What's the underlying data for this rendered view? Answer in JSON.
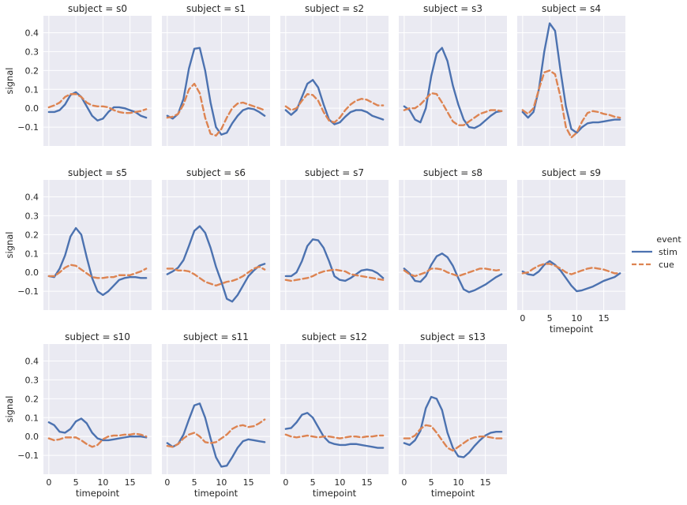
{
  "chart_data": {
    "type": "line",
    "title": "",
    "facet_var": "subject",
    "panel_titles": [
      "subject = s0",
      "subject = s1",
      "subject = s2",
      "subject = s3",
      "subject = s4",
      "subject = s5",
      "subject = s6",
      "subject = s7",
      "subject = s8",
      "subject = s9",
      "subject = s10",
      "subject = s11",
      "subject = s12",
      "subject = s13"
    ],
    "xlabel": "timepoint",
    "ylabel": "signal",
    "xlim": [
      -1,
      19
    ],
    "ylim": [
      -0.2,
      0.49
    ],
    "xticks": [
      "0",
      "5",
      "10",
      "15"
    ],
    "yticks": [
      "−0.1",
      "0.0",
      "0.1",
      "0.2",
      "0.3",
      "0.4"
    ],
    "grid": true,
    "legend": {
      "title": "event",
      "position": "right",
      "entries": [
        "stim",
        "cue"
      ]
    },
    "colors": {
      "stim": "#4c72b0",
      "cue": "#dd8452",
      "background": "#eaeaf2",
      "grid": "#ffffff"
    },
    "x": [
      0,
      1,
      2,
      3,
      4,
      5,
      6,
      7,
      8,
      9,
      10,
      11,
      12,
      13,
      14,
      15,
      16,
      17,
      18
    ],
    "panels": [
      {
        "subject": "s0",
        "series": [
          {
            "name": "stim",
            "values": [
              -0.02,
              -0.02,
              -0.01,
              0.02,
              0.07,
              0.085,
              0.06,
              0.01,
              -0.04,
              -0.065,
              -0.055,
              -0.02,
              0.005,
              0.005,
              0.0,
              -0.01,
              -0.02,
              -0.04,
              -0.05
            ]
          },
          {
            "name": "cue",
            "values": [
              0.005,
              0.015,
              0.03,
              0.06,
              0.075,
              0.075,
              0.06,
              0.03,
              0.015,
              0.01,
              0.01,
              0.005,
              -0.01,
              -0.02,
              -0.025,
              -0.025,
              -0.02,
              -0.015,
              -0.005
            ]
          }
        ]
      },
      {
        "subject": "s1",
        "series": [
          {
            "name": "stim",
            "values": [
              -0.04,
              -0.055,
              -0.03,
              0.05,
              0.21,
              0.315,
              0.32,
              0.2,
              0.03,
              -0.1,
              -0.14,
              -0.13,
              -0.08,
              -0.04,
              -0.01,
              0.0,
              -0.005,
              -0.02,
              -0.04
            ]
          },
          {
            "name": "cue",
            "values": [
              -0.05,
              -0.045,
              -0.03,
              0.02,
              0.1,
              0.13,
              0.08,
              -0.05,
              -0.135,
              -0.145,
              -0.11,
              -0.05,
              0.0,
              0.025,
              0.03,
              0.02,
              0.01,
              0.0,
              -0.01
            ]
          }
        ]
      },
      {
        "subject": "s2",
        "series": [
          {
            "name": "stim",
            "values": [
              -0.01,
              -0.035,
              -0.01,
              0.06,
              0.13,
              0.15,
              0.11,
              0.02,
              -0.06,
              -0.085,
              -0.075,
              -0.045,
              -0.02,
              -0.01,
              -0.01,
              -0.02,
              -0.04,
              -0.05,
              -0.06
            ]
          },
          {
            "name": "cue",
            "values": [
              0.01,
              -0.01,
              0.0,
              0.04,
              0.075,
              0.07,
              0.04,
              -0.02,
              -0.065,
              -0.075,
              -0.05,
              -0.01,
              0.02,
              0.04,
              0.05,
              0.045,
              0.03,
              0.015,
              0.015
            ]
          }
        ]
      },
      {
        "subject": "s3",
        "series": [
          {
            "name": "stim",
            "values": [
              0.01,
              -0.01,
              -0.06,
              -0.075,
              0.0,
              0.17,
              0.29,
              0.32,
              0.25,
              0.12,
              0.02,
              -0.06,
              -0.1,
              -0.105,
              -0.09,
              -0.065,
              -0.04,
              -0.02,
              -0.015
            ]
          },
          {
            "name": "cue",
            "values": [
              -0.01,
              0.0,
              0.0,
              0.02,
              0.05,
              0.08,
              0.075,
              0.03,
              -0.02,
              -0.07,
              -0.09,
              -0.09,
              -0.07,
              -0.05,
              -0.03,
              -0.02,
              -0.01,
              -0.01,
              -0.015
            ]
          }
        ]
      },
      {
        "subject": "s4",
        "series": [
          {
            "name": "stim",
            "values": [
              -0.02,
              -0.05,
              -0.02,
              0.1,
              0.3,
              0.45,
              0.41,
              0.2,
              0.01,
              -0.11,
              -0.13,
              -0.1,
              -0.08,
              -0.075,
              -0.075,
              -0.07,
              -0.065,
              -0.06,
              -0.06
            ]
          },
          {
            "name": "cue",
            "values": [
              -0.01,
              -0.03,
              0.0,
              0.1,
              0.19,
              0.2,
              0.18,
              0.06,
              -0.1,
              -0.155,
              -0.13,
              -0.07,
              -0.025,
              -0.015,
              -0.02,
              -0.03,
              -0.035,
              -0.045,
              -0.05
            ]
          }
        ]
      },
      {
        "subject": "s5",
        "series": [
          {
            "name": "stim",
            "values": [
              -0.02,
              -0.025,
              0.02,
              0.09,
              0.19,
              0.235,
              0.2,
              0.08,
              -0.03,
              -0.1,
              -0.12,
              -0.1,
              -0.07,
              -0.04,
              -0.03,
              -0.025,
              -0.025,
              -0.03,
              -0.03
            ]
          },
          {
            "name": "cue",
            "values": [
              -0.02,
              -0.02,
              0.0,
              0.025,
              0.04,
              0.035,
              0.015,
              -0.005,
              -0.025,
              -0.03,
              -0.03,
              -0.025,
              -0.025,
              -0.015,
              -0.015,
              -0.015,
              -0.005,
              0.005,
              0.02
            ]
          }
        ]
      },
      {
        "subject": "s6",
        "series": [
          {
            "name": "stim",
            "values": [
              -0.01,
              0.005,
              0.025,
              0.065,
              0.14,
              0.22,
              0.245,
              0.21,
              0.13,
              0.03,
              -0.05,
              -0.14,
              -0.155,
              -0.12,
              -0.07,
              -0.02,
              0.01,
              0.035,
              0.045
            ]
          },
          {
            "name": "cue",
            "values": [
              0.02,
              0.02,
              0.01,
              0.01,
              0.005,
              -0.01,
              -0.03,
              -0.05,
              -0.06,
              -0.07,
              -0.06,
              -0.05,
              -0.045,
              -0.035,
              -0.02,
              0.0,
              0.02,
              0.03,
              0.015
            ]
          }
        ]
      },
      {
        "subject": "s7",
        "series": [
          {
            "name": "stim",
            "values": [
              -0.02,
              -0.02,
              0.0,
              0.06,
              0.14,
              0.175,
              0.17,
              0.13,
              0.06,
              -0.02,
              -0.04,
              -0.045,
              -0.03,
              -0.01,
              0.01,
              0.015,
              0.01,
              -0.005,
              -0.03
            ]
          },
          {
            "name": "cue",
            "values": [
              -0.04,
              -0.045,
              -0.04,
              -0.035,
              -0.03,
              -0.02,
              -0.005,
              0.005,
              0.01,
              0.015,
              0.01,
              0.005,
              -0.01,
              -0.015,
              -0.02,
              -0.025,
              -0.03,
              -0.035,
              -0.04
            ]
          }
        ]
      },
      {
        "subject": "s8",
        "series": [
          {
            "name": "stim",
            "values": [
              0.02,
              -0.005,
              -0.045,
              -0.05,
              -0.02,
              0.04,
              0.085,
              0.1,
              0.08,
              0.035,
              -0.03,
              -0.09,
              -0.105,
              -0.095,
              -0.08,
              -0.065,
              -0.045,
              -0.025,
              -0.01
            ]
          },
          {
            "name": "cue",
            "values": [
              0.01,
              -0.01,
              -0.02,
              -0.01,
              0.0,
              0.02,
              0.02,
              0.015,
              0.0,
              -0.01,
              -0.02,
              -0.01,
              0.0,
              0.01,
              0.02,
              0.02,
              0.015,
              0.01,
              0.015
            ]
          }
        ]
      },
      {
        "subject": "s9",
        "series": [
          {
            "name": "stim",
            "values": [
              0.005,
              -0.01,
              -0.015,
              0.005,
              0.04,
              0.06,
              0.04,
              0.01,
              -0.03,
              -0.07,
              -0.1,
              -0.095,
              -0.085,
              -0.075,
              -0.06,
              -0.045,
              -0.035,
              -0.025,
              -0.005
            ]
          },
          {
            "name": "cue",
            "values": [
              -0.005,
              0.0,
              0.02,
              0.035,
              0.045,
              0.045,
              0.035,
              0.02,
              0.0,
              -0.01,
              0.0,
              0.01,
              0.02,
              0.025,
              0.02,
              0.015,
              0.005,
              -0.005,
              -0.005
            ]
          }
        ]
      },
      {
        "subject": "s10",
        "series": [
          {
            "name": "stim",
            "values": [
              0.075,
              0.06,
              0.025,
              0.02,
              0.04,
              0.08,
              0.095,
              0.07,
              0.02,
              -0.01,
              -0.02,
              -0.02,
              -0.015,
              -0.01,
              -0.005,
              0.0,
              0.0,
              0.0,
              -0.005
            ]
          },
          {
            "name": "cue",
            "values": [
              -0.01,
              -0.02,
              -0.015,
              -0.005,
              -0.005,
              -0.005,
              -0.02,
              -0.04,
              -0.055,
              -0.045,
              -0.015,
              0.0,
              0.005,
              0.005,
              0.01,
              0.01,
              0.015,
              0.01,
              0.0
            ]
          }
        ]
      },
      {
        "subject": "s11",
        "series": [
          {
            "name": "stim",
            "values": [
              -0.035,
              -0.055,
              -0.04,
              0.01,
              0.09,
              0.165,
              0.175,
              0.1,
              -0.01,
              -0.11,
              -0.16,
              -0.155,
              -0.11,
              -0.06,
              -0.025,
              -0.015,
              -0.02,
              -0.025,
              -0.03
            ]
          },
          {
            "name": "cue",
            "values": [
              -0.05,
              -0.055,
              -0.04,
              -0.01,
              0.01,
              0.02,
              0.0,
              -0.03,
              -0.035,
              -0.03,
              -0.01,
              0.01,
              0.04,
              0.055,
              0.06,
              0.05,
              0.055,
              0.07,
              0.09
            ]
          }
        ]
      },
      {
        "subject": "s12",
        "series": [
          {
            "name": "stim",
            "values": [
              0.04,
              0.045,
              0.075,
              0.115,
              0.125,
              0.1,
              0.05,
              0.0,
              -0.03,
              -0.04,
              -0.045,
              -0.045,
              -0.04,
              -0.04,
              -0.045,
              -0.05,
              -0.055,
              -0.06,
              -0.06
            ]
          },
          {
            "name": "cue",
            "values": [
              0.01,
              0.0,
              -0.005,
              0.0,
              0.005,
              0.0,
              -0.005,
              0.0,
              0.0,
              -0.005,
              -0.01,
              -0.005,
              0.0,
              0.0,
              -0.005,
              0.0,
              0.0,
              0.005,
              0.005
            ]
          }
        ]
      },
      {
        "subject": "s13",
        "series": [
          {
            "name": "stim",
            "values": [
              -0.035,
              -0.045,
              -0.02,
              0.03,
              0.15,
              0.21,
              0.2,
              0.14,
              0.02,
              -0.06,
              -0.105,
              -0.11,
              -0.085,
              -0.05,
              -0.02,
              0.005,
              0.02,
              0.025,
              0.025
            ]
          },
          {
            "name": "cue",
            "values": [
              -0.01,
              -0.01,
              0.005,
              0.04,
              0.06,
              0.055,
              0.02,
              -0.02,
              -0.06,
              -0.075,
              -0.055,
              -0.035,
              -0.015,
              -0.005,
              0.0,
              0.0,
              -0.005,
              -0.01,
              -0.01
            ]
          }
        ]
      }
    ]
  }
}
